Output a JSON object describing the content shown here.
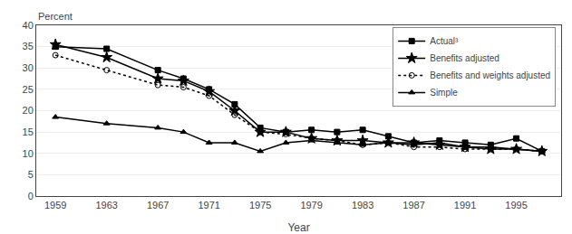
{
  "chart_data": {
    "type": "line",
    "xlabel": "Year",
    "ylabel": "Percent",
    "x": [
      1959,
      1963,
      1967,
      1969,
      1971,
      1973,
      1975,
      1977,
      1979,
      1981,
      1983,
      1985,
      1987,
      1989,
      1991,
      1993,
      1995,
      1997
    ],
    "series": [
      {
        "name": "Actual³",
        "color": "#000000",
        "marker": "square",
        "line_style": "solid",
        "values": [
          35.0,
          34.5,
          29.5,
          27.5,
          25.0,
          21.5,
          16.0,
          15.0,
          15.5,
          15.0,
          15.5,
          14.0,
          12.5,
          13.0,
          12.5,
          12.0,
          13.5,
          10.5
        ]
      },
      {
        "name": "Benefits adjusted",
        "color": "#000000",
        "marker": "star",
        "line_style": "solid",
        "values": [
          35.5,
          32.5,
          27.5,
          27.0,
          24.5,
          20.0,
          15.0,
          15.0,
          13.5,
          13.0,
          13.0,
          12.5,
          12.5,
          12.0,
          11.5,
          11.0,
          11.0,
          10.5
        ]
      },
      {
        "name": "Benefits and weights adjusted",
        "color": "#000000",
        "marker": "circle-open",
        "line_style": "dotted",
        "values": [
          33.0,
          29.5,
          26.0,
          25.5,
          23.5,
          19.0,
          15.0,
          14.5,
          13.5,
          13.0,
          12.0,
          12.5,
          11.5,
          11.5,
          11.0,
          11.0,
          11.0,
          10.5
        ]
      },
      {
        "name": "Simple",
        "color": "#000000",
        "marker": "triangle-up",
        "line_style": "solid",
        "values": [
          18.5,
          17.0,
          16.0,
          15.0,
          12.5,
          12.5,
          10.5,
          12.5,
          13.0,
          12.5,
          12.0,
          12.5,
          12.0,
          12.5,
          11.5,
          11.5,
          11.0,
          10.5
        ]
      }
    ],
    "xlim": [
      1957.5,
      1998.5
    ],
    "xticks": [
      1959,
      1963,
      1967,
      1971,
      1975,
      1979,
      1983,
      1987,
      1991,
      1995
    ],
    "ylim": [
      0,
      40
    ],
    "yticks": [
      0,
      5,
      10,
      15,
      20,
      25,
      30,
      35,
      40
    ],
    "grid": "y",
    "legend": "upper right"
  }
}
